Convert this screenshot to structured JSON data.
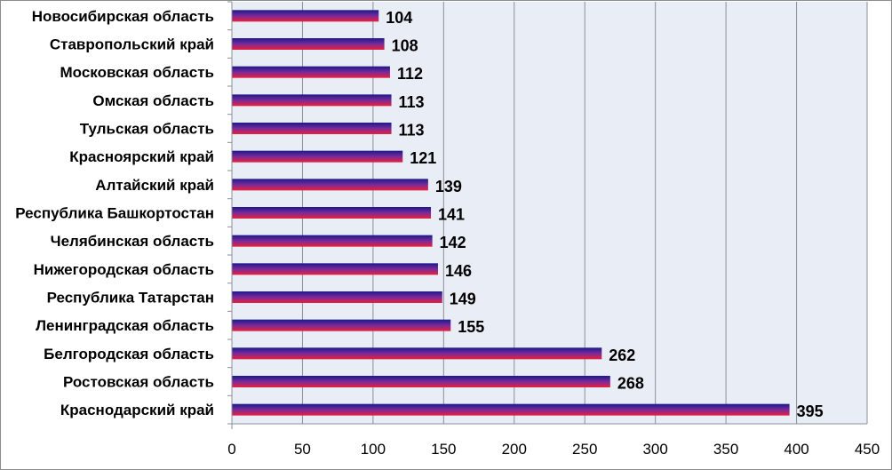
{
  "chart_data": {
    "type": "bar",
    "orientation": "horizontal",
    "title": "",
    "xlabel": "",
    "ylabel": "",
    "xlim": [
      0,
      450
    ],
    "x_ticks": [
      0,
      50,
      100,
      150,
      200,
      250,
      300,
      350,
      400,
      450
    ],
    "grid": true,
    "legend": "none",
    "categories": [
      "Новосибирская область",
      "Ставропольский край",
      "Московская область",
      "Омская область",
      "Тульская область",
      "Красноярский край",
      "Алтайский край",
      "Республика Башкортостан",
      "Челябинская область",
      "Нижегородская область",
      "Республика Татарстан",
      "Ленинградская область",
      "Белгородская область",
      "Ростовская область",
      "Краснодарский край"
    ],
    "values": [
      104,
      108,
      112,
      113,
      113,
      121,
      139,
      141,
      142,
      146,
      149,
      155,
      262,
      268,
      395
    ],
    "colors": {
      "plot_background": "#e9edf5",
      "gridline": "#8a8f99",
      "bar_top": "#1a1a8c",
      "bar_mid": "#7a2a9a",
      "bar_bottom": "#e8203a"
    }
  }
}
